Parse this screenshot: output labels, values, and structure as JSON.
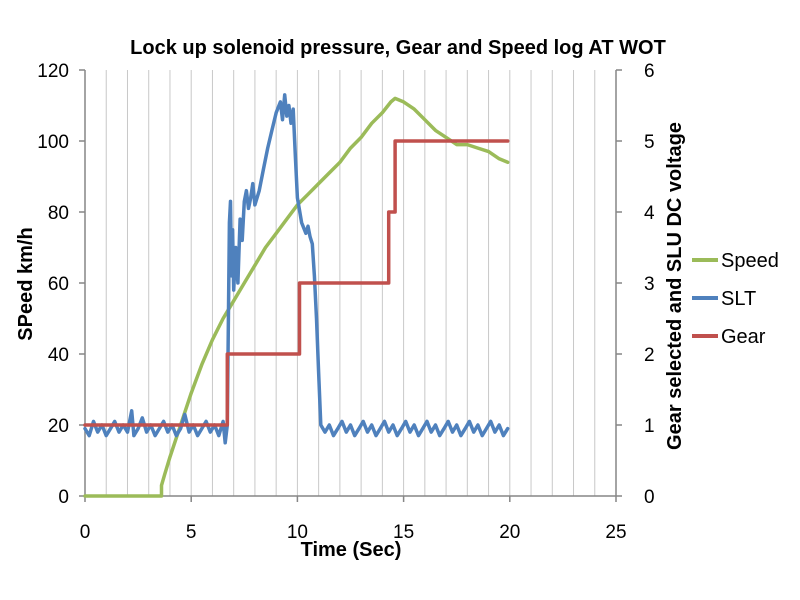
{
  "chart_data": {
    "type": "line",
    "title": "Lock up solenoid pressure, Gear and Speed log AT WOT",
    "xlabel": "Time (Sec)",
    "ylabel": "SPeed km/h",
    "y2label": "Gear selected and SLU DC voltage",
    "xlim": [
      0,
      25
    ],
    "ylim": [
      0,
      120
    ],
    "y2lim": [
      0,
      6
    ],
    "x_ticks": [
      "0",
      "5",
      "10",
      "15",
      "20",
      "25"
    ],
    "y_ticks": [
      "0",
      "20",
      "40",
      "60",
      "80",
      "100",
      "120"
    ],
    "y2_ticks": [
      "0",
      "1",
      "2",
      "3",
      "4",
      "5",
      "6"
    ],
    "grid": "vertical minor gridlines",
    "legend_position": "right",
    "series": [
      {
        "name": "Speed",
        "axis": "left",
        "color": "#9BBB59",
        "points": [
          [
            0,
            0
          ],
          [
            3.5,
            0
          ],
          [
            3.6,
            0
          ],
          [
            3.6,
            3
          ],
          [
            3.75,
            6
          ],
          [
            4.0,
            11
          ],
          [
            4.5,
            20
          ],
          [
            5.0,
            29
          ],
          [
            5.5,
            37
          ],
          [
            6.0,
            44
          ],
          [
            6.5,
            50
          ],
          [
            7.0,
            55
          ],
          [
            7.5,
            60
          ],
          [
            8.0,
            65
          ],
          [
            8.5,
            70
          ],
          [
            9.0,
            74
          ],
          [
            9.5,
            78
          ],
          [
            10.0,
            82
          ],
          [
            10.5,
            85
          ],
          [
            11.0,
            88
          ],
          [
            11.5,
            91
          ],
          [
            12.0,
            94
          ],
          [
            12.5,
            98
          ],
          [
            13.0,
            101
          ],
          [
            13.5,
            105
          ],
          [
            14.0,
            108
          ],
          [
            14.4,
            111
          ],
          [
            14.6,
            112
          ],
          [
            15.0,
            111
          ],
          [
            15.5,
            109
          ],
          [
            16.0,
            106
          ],
          [
            16.5,
            103
          ],
          [
            17.0,
            101
          ],
          [
            17.5,
            99
          ],
          [
            18.0,
            99
          ],
          [
            18.5,
            98
          ],
          [
            19.0,
            97
          ],
          [
            19.5,
            95
          ],
          [
            19.9,
            94
          ]
        ]
      },
      {
        "name": "SLT",
        "axis": "left",
        "color": "#4F81BD",
        "points": [
          [
            0,
            19
          ],
          [
            0.2,
            17
          ],
          [
            0.4,
            21
          ],
          [
            0.6,
            18
          ],
          [
            0.8,
            20
          ],
          [
            1.0,
            17
          ],
          [
            1.2,
            19
          ],
          [
            1.4,
            21
          ],
          [
            1.6,
            18
          ],
          [
            1.8,
            20
          ],
          [
            2.0,
            18
          ],
          [
            2.2,
            24
          ],
          [
            2.3,
            17
          ],
          [
            2.5,
            19
          ],
          [
            2.7,
            22
          ],
          [
            2.9,
            18
          ],
          [
            3.1,
            20
          ],
          [
            3.3,
            17
          ],
          [
            3.5,
            19
          ],
          [
            3.7,
            21
          ],
          [
            3.9,
            18
          ],
          [
            4.1,
            20
          ],
          [
            4.3,
            17
          ],
          [
            4.5,
            19
          ],
          [
            4.7,
            23
          ],
          [
            4.9,
            18
          ],
          [
            5.1,
            20
          ],
          [
            5.3,
            17
          ],
          [
            5.5,
            19
          ],
          [
            5.7,
            21
          ],
          [
            5.9,
            18
          ],
          [
            6.1,
            20
          ],
          [
            6.3,
            17
          ],
          [
            6.5,
            21
          ],
          [
            6.6,
            15
          ],
          [
            6.7,
            20
          ],
          [
            6.8,
            77
          ],
          [
            6.85,
            83
          ],
          [
            6.9,
            62
          ],
          [
            6.95,
            75
          ],
          [
            7.0,
            58
          ],
          [
            7.1,
            70
          ],
          [
            7.2,
            60
          ],
          [
            7.3,
            78
          ],
          [
            7.4,
            72
          ],
          [
            7.5,
            83
          ],
          [
            7.6,
            86
          ],
          [
            7.7,
            81
          ],
          [
            7.8,
            84
          ],
          [
            7.9,
            88
          ],
          [
            8.0,
            82
          ],
          [
            8.2,
            86
          ],
          [
            8.4,
            92
          ],
          [
            8.6,
            98
          ],
          [
            8.8,
            103
          ],
          [
            9.0,
            108
          ],
          [
            9.2,
            111
          ],
          [
            9.3,
            106
          ],
          [
            9.4,
            113
          ],
          [
            9.5,
            107
          ],
          [
            9.6,
            110
          ],
          [
            9.7,
            105
          ],
          [
            9.8,
            109
          ],
          [
            9.9,
            96
          ],
          [
            10.0,
            84
          ],
          [
            10.2,
            77
          ],
          [
            10.4,
            74
          ],
          [
            10.5,
            76
          ],
          [
            10.6,
            73
          ],
          [
            10.7,
            71
          ],
          [
            10.8,
            62
          ],
          [
            10.9,
            50
          ],
          [
            11.0,
            35
          ],
          [
            11.1,
            20
          ],
          [
            11.3,
            18
          ],
          [
            11.5,
            20
          ],
          [
            11.7,
            17
          ],
          [
            11.9,
            19
          ],
          [
            12.1,
            21
          ],
          [
            12.3,
            18
          ],
          [
            12.5,
            20
          ],
          [
            12.7,
            17
          ],
          [
            12.9,
            19
          ],
          [
            13.1,
            21
          ],
          [
            13.3,
            18
          ],
          [
            13.5,
            20
          ],
          [
            13.7,
            17
          ],
          [
            13.9,
            19
          ],
          [
            14.1,
            21
          ],
          [
            14.3,
            18
          ],
          [
            14.5,
            20
          ],
          [
            14.7,
            17
          ],
          [
            14.9,
            19
          ],
          [
            15.1,
            21
          ],
          [
            15.3,
            18
          ],
          [
            15.5,
            20
          ],
          [
            15.7,
            17
          ],
          [
            15.9,
            19
          ],
          [
            16.1,
            21
          ],
          [
            16.3,
            18
          ],
          [
            16.5,
            20
          ],
          [
            16.7,
            17
          ],
          [
            16.9,
            19
          ],
          [
            17.1,
            21
          ],
          [
            17.3,
            18
          ],
          [
            17.5,
            20
          ],
          [
            17.7,
            17
          ],
          [
            17.9,
            19
          ],
          [
            18.1,
            21
          ],
          [
            18.3,
            18
          ],
          [
            18.5,
            20
          ],
          [
            18.7,
            17
          ],
          [
            18.9,
            19
          ],
          [
            19.1,
            21
          ],
          [
            19.3,
            18
          ],
          [
            19.5,
            20
          ],
          [
            19.7,
            17
          ],
          [
            19.9,
            19
          ]
        ]
      },
      {
        "name": "Gear",
        "axis": "right",
        "color": "#C0504D",
        "points": [
          [
            0,
            1
          ],
          [
            6.7,
            1
          ],
          [
            6.7,
            2
          ],
          [
            10.1,
            2
          ],
          [
            10.1,
            3
          ],
          [
            14.3,
            3
          ],
          [
            14.3,
            4
          ],
          [
            14.6,
            4
          ],
          [
            14.6,
            5
          ],
          [
            19.9,
            5
          ]
        ]
      }
    ]
  }
}
